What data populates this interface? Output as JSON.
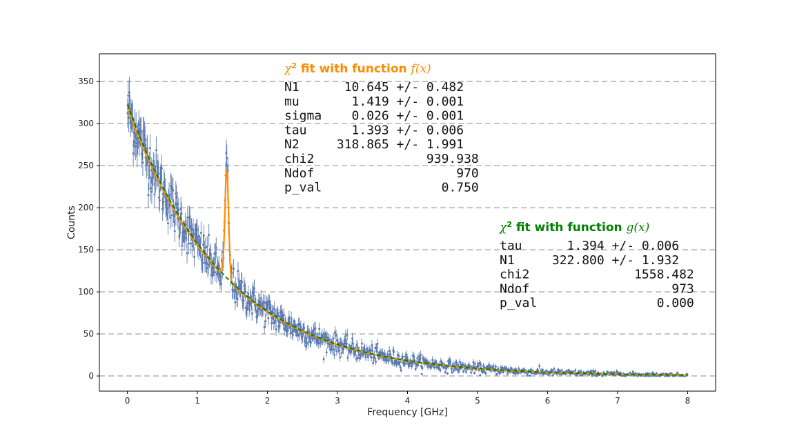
{
  "chart_data": {
    "type": "scatter",
    "xlabel": "Frequency [GHz]",
    "ylabel": "Counts",
    "xlim": [
      -0.4,
      8.4
    ],
    "ylim": [
      -18,
      383
    ],
    "xticks": [
      "0",
      "1",
      "2",
      "3",
      "4",
      "5",
      "6",
      "7",
      "8"
    ],
    "yticks": [
      "0",
      "50",
      "100",
      "150",
      "200",
      "250",
      "300",
      "350"
    ],
    "grid": "horizontal dashed",
    "colors": {
      "data": "#5a78b0",
      "fit_f": "#ff8c00",
      "fit_g": "#008000",
      "grid": "#b0b0b0"
    },
    "series": [
      {
        "kind": "errorbar",
        "x_range": [
          0,
          8
        ],
        "points": 1000,
        "model": "322.8*exp(-x/1.394) + Gaussian peak near x=1.419, sigma 0.026"
      },
      {
        "kind": "fit_line",
        "function": "f(x)",
        "params": {
          "N1": 10.645,
          "mu": 1.419,
          "sigma": 0.026,
          "tau": 1.393,
          "N2": 318.865
        }
      },
      {
        "kind": "fit_line_dashed",
        "function": "g(x)",
        "params": {
          "tau": 1.394,
          "N1": 322.8
        }
      }
    ],
    "annotations": [
      {
        "title_prefix": "χ",
        "title_sup": "2",
        "title_text": " fit with function ",
        "title_func": "f(x)",
        "color": "#ff8c00",
        "rows": [
          "N1      10.645 +/- 0.482",
          "mu       1.419 +/- 0.001",
          "sigma    0.026 +/- 0.001",
          "tau      1.393 +/- 0.006",
          "N2     318.865 +/- 1.991",
          "chi2               939.938",
          "Ndof                   970",
          "p_val                0.750"
        ]
      },
      {
        "title_prefix": "χ",
        "title_sup": "2",
        "title_text": " fit with function ",
        "title_func": "g(x)",
        "color": "#008000",
        "rows": [
          "tau      1.394 +/- 0.006",
          "N1     322.800 +/- 1.932",
          "chi2              1558.482",
          "Ndof                   973",
          "p_val                0.000"
        ]
      }
    ]
  }
}
